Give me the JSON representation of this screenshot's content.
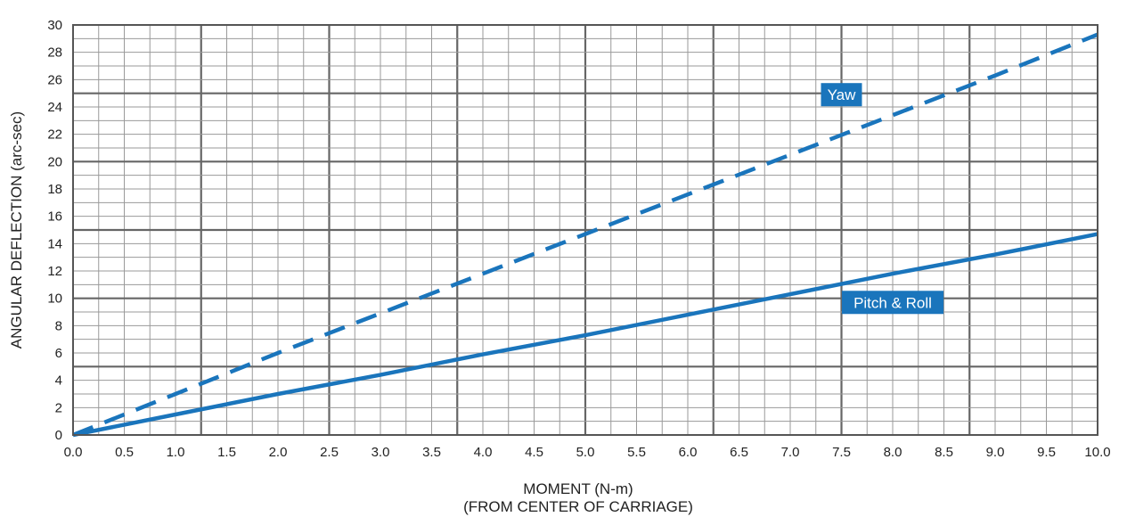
{
  "chart_data": {
    "type": "line",
    "title": "",
    "xlabel": "MOMENT (N-m)",
    "xlabel_sub": "(FROM CENTER OF CARRIAGE)",
    "ylabel": "ANGULAR DEFLECTION (arc-sec)",
    "xlim": [
      0,
      10
    ],
    "ylim": [
      0,
      30
    ],
    "x_ticks": [
      "0.0",
      "0.5",
      "1.0",
      "1.5",
      "2.0",
      "2.5",
      "3.0",
      "3.5",
      "4.0",
      "4.5",
      "5.0",
      "5.5",
      "6.0",
      "6.5",
      "7.0",
      "7.5",
      "8.0",
      "8.5",
      "9.0",
      "9.5",
      "10.0"
    ],
    "y_ticks": [
      "0",
      "2",
      "4",
      "6",
      "8",
      "10",
      "12",
      "14",
      "16",
      "18",
      "20",
      "22",
      "24",
      "26",
      "28",
      "30"
    ],
    "grid": true,
    "series": [
      {
        "name": "Yaw",
        "style": "dashed",
        "color": "#1a75bc",
        "x": [
          0,
          1,
          2,
          3,
          4,
          5,
          6,
          7,
          8,
          9,
          10
        ],
        "y": [
          0,
          3.0,
          6.0,
          8.9,
          11.8,
          14.7,
          17.6,
          20.5,
          23.4,
          26.3,
          29.3
        ]
      },
      {
        "name": "Pitch & Roll",
        "style": "solid",
        "color": "#1a75bc",
        "x": [
          0,
          1,
          2,
          3,
          4,
          5,
          6,
          7,
          8,
          9,
          10
        ],
        "y": [
          0,
          1.5,
          3.0,
          4.4,
          5.9,
          7.3,
          8.8,
          10.3,
          11.8,
          13.2,
          14.7
        ]
      }
    ]
  }
}
